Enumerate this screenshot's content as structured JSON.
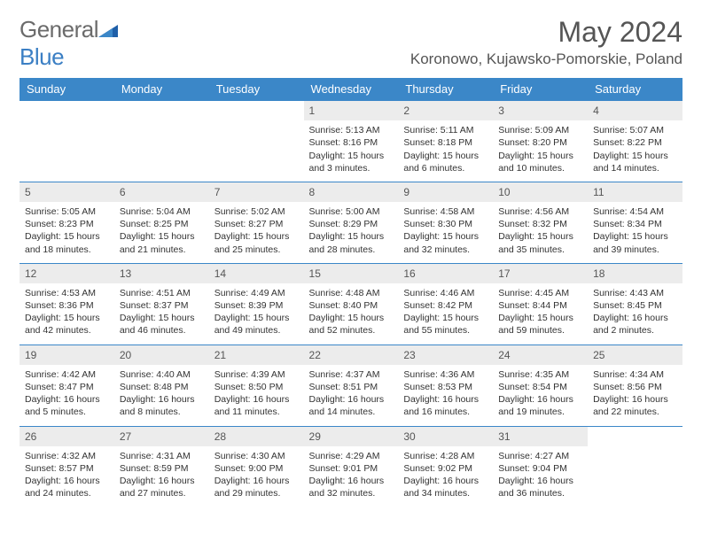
{
  "brand": {
    "part1": "General",
    "part2": "Blue"
  },
  "title": "May 2024",
  "location": "Koronowo, Kujawsko-Pomorskie, Poland",
  "colors": {
    "header_bg": "#3b87c8",
    "header_fg": "#ffffff",
    "daynum_bg": "#ececec",
    "border": "#3b87c8",
    "text": "#333333",
    "brand_gray": "#6b6b6b",
    "brand_blue": "#3b7fc4"
  },
  "weekdays": [
    "Sunday",
    "Monday",
    "Tuesday",
    "Wednesday",
    "Thursday",
    "Friday",
    "Saturday"
  ],
  "weeks": [
    [
      {
        "n": "",
        "sr": "",
        "ss": "",
        "dl": ""
      },
      {
        "n": "",
        "sr": "",
        "ss": "",
        "dl": ""
      },
      {
        "n": "",
        "sr": "",
        "ss": "",
        "dl": ""
      },
      {
        "n": "1",
        "sr": "Sunrise: 5:13 AM",
        "ss": "Sunset: 8:16 PM",
        "dl": "Daylight: 15 hours and 3 minutes."
      },
      {
        "n": "2",
        "sr": "Sunrise: 5:11 AM",
        "ss": "Sunset: 8:18 PM",
        "dl": "Daylight: 15 hours and 6 minutes."
      },
      {
        "n": "3",
        "sr": "Sunrise: 5:09 AM",
        "ss": "Sunset: 8:20 PM",
        "dl": "Daylight: 15 hours and 10 minutes."
      },
      {
        "n": "4",
        "sr": "Sunrise: 5:07 AM",
        "ss": "Sunset: 8:22 PM",
        "dl": "Daylight: 15 hours and 14 minutes."
      }
    ],
    [
      {
        "n": "5",
        "sr": "Sunrise: 5:05 AM",
        "ss": "Sunset: 8:23 PM",
        "dl": "Daylight: 15 hours and 18 minutes."
      },
      {
        "n": "6",
        "sr": "Sunrise: 5:04 AM",
        "ss": "Sunset: 8:25 PM",
        "dl": "Daylight: 15 hours and 21 minutes."
      },
      {
        "n": "7",
        "sr": "Sunrise: 5:02 AM",
        "ss": "Sunset: 8:27 PM",
        "dl": "Daylight: 15 hours and 25 minutes."
      },
      {
        "n": "8",
        "sr": "Sunrise: 5:00 AM",
        "ss": "Sunset: 8:29 PM",
        "dl": "Daylight: 15 hours and 28 minutes."
      },
      {
        "n": "9",
        "sr": "Sunrise: 4:58 AM",
        "ss": "Sunset: 8:30 PM",
        "dl": "Daylight: 15 hours and 32 minutes."
      },
      {
        "n": "10",
        "sr": "Sunrise: 4:56 AM",
        "ss": "Sunset: 8:32 PM",
        "dl": "Daylight: 15 hours and 35 minutes."
      },
      {
        "n": "11",
        "sr": "Sunrise: 4:54 AM",
        "ss": "Sunset: 8:34 PM",
        "dl": "Daylight: 15 hours and 39 minutes."
      }
    ],
    [
      {
        "n": "12",
        "sr": "Sunrise: 4:53 AM",
        "ss": "Sunset: 8:36 PM",
        "dl": "Daylight: 15 hours and 42 minutes."
      },
      {
        "n": "13",
        "sr": "Sunrise: 4:51 AM",
        "ss": "Sunset: 8:37 PM",
        "dl": "Daylight: 15 hours and 46 minutes."
      },
      {
        "n": "14",
        "sr": "Sunrise: 4:49 AM",
        "ss": "Sunset: 8:39 PM",
        "dl": "Daylight: 15 hours and 49 minutes."
      },
      {
        "n": "15",
        "sr": "Sunrise: 4:48 AM",
        "ss": "Sunset: 8:40 PM",
        "dl": "Daylight: 15 hours and 52 minutes."
      },
      {
        "n": "16",
        "sr": "Sunrise: 4:46 AM",
        "ss": "Sunset: 8:42 PM",
        "dl": "Daylight: 15 hours and 55 minutes."
      },
      {
        "n": "17",
        "sr": "Sunrise: 4:45 AM",
        "ss": "Sunset: 8:44 PM",
        "dl": "Daylight: 15 hours and 59 minutes."
      },
      {
        "n": "18",
        "sr": "Sunrise: 4:43 AM",
        "ss": "Sunset: 8:45 PM",
        "dl": "Daylight: 16 hours and 2 minutes."
      }
    ],
    [
      {
        "n": "19",
        "sr": "Sunrise: 4:42 AM",
        "ss": "Sunset: 8:47 PM",
        "dl": "Daylight: 16 hours and 5 minutes."
      },
      {
        "n": "20",
        "sr": "Sunrise: 4:40 AM",
        "ss": "Sunset: 8:48 PM",
        "dl": "Daylight: 16 hours and 8 minutes."
      },
      {
        "n": "21",
        "sr": "Sunrise: 4:39 AM",
        "ss": "Sunset: 8:50 PM",
        "dl": "Daylight: 16 hours and 11 minutes."
      },
      {
        "n": "22",
        "sr": "Sunrise: 4:37 AM",
        "ss": "Sunset: 8:51 PM",
        "dl": "Daylight: 16 hours and 14 minutes."
      },
      {
        "n": "23",
        "sr": "Sunrise: 4:36 AM",
        "ss": "Sunset: 8:53 PM",
        "dl": "Daylight: 16 hours and 16 minutes."
      },
      {
        "n": "24",
        "sr": "Sunrise: 4:35 AM",
        "ss": "Sunset: 8:54 PM",
        "dl": "Daylight: 16 hours and 19 minutes."
      },
      {
        "n": "25",
        "sr": "Sunrise: 4:34 AM",
        "ss": "Sunset: 8:56 PM",
        "dl": "Daylight: 16 hours and 22 minutes."
      }
    ],
    [
      {
        "n": "26",
        "sr": "Sunrise: 4:32 AM",
        "ss": "Sunset: 8:57 PM",
        "dl": "Daylight: 16 hours and 24 minutes."
      },
      {
        "n": "27",
        "sr": "Sunrise: 4:31 AM",
        "ss": "Sunset: 8:59 PM",
        "dl": "Daylight: 16 hours and 27 minutes."
      },
      {
        "n": "28",
        "sr": "Sunrise: 4:30 AM",
        "ss": "Sunset: 9:00 PM",
        "dl": "Daylight: 16 hours and 29 minutes."
      },
      {
        "n": "29",
        "sr": "Sunrise: 4:29 AM",
        "ss": "Sunset: 9:01 PM",
        "dl": "Daylight: 16 hours and 32 minutes."
      },
      {
        "n": "30",
        "sr": "Sunrise: 4:28 AM",
        "ss": "Sunset: 9:02 PM",
        "dl": "Daylight: 16 hours and 34 minutes."
      },
      {
        "n": "31",
        "sr": "Sunrise: 4:27 AM",
        "ss": "Sunset: 9:04 PM",
        "dl": "Daylight: 16 hours and 36 minutes."
      },
      {
        "n": "",
        "sr": "",
        "ss": "",
        "dl": ""
      }
    ]
  ]
}
